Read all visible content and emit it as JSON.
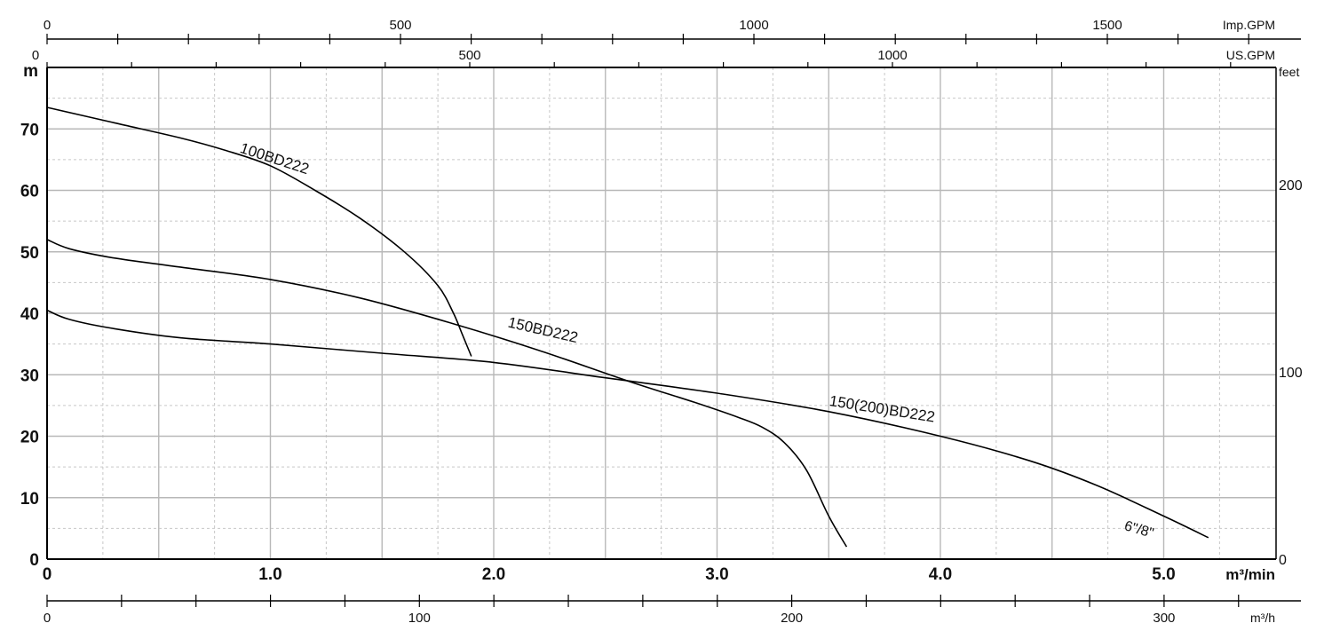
{
  "chart_data": {
    "type": "line",
    "title": "",
    "xlabel": "m³/min",
    "ylabel": "m",
    "xlim": [
      0,
      5.5
    ],
    "ylim": [
      0,
      80
    ],
    "grid": true,
    "x_ticks": [
      "0",
      "1.0",
      "2.0",
      "3.0",
      "4.0",
      "5.0"
    ],
    "y_ticks": [
      "0",
      "10",
      "20",
      "30",
      "40",
      "50",
      "60",
      "70"
    ],
    "y_axis_unit": "m",
    "secondary_axes": {
      "imp_gpm": {
        "label": "Imp.GPM",
        "ticks": [
          "0",
          "500",
          "1000",
          "1500"
        ]
      },
      "us_gpm": {
        "label": "US.GPM",
        "ticks": [
          "0",
          "500",
          "1000"
        ]
      },
      "feet": {
        "label": "feet",
        "ticks": [
          "0",
          "100",
          "200"
        ]
      },
      "m3h": {
        "label": "m³/h",
        "ticks": [
          "0",
          "100",
          "200",
          "300"
        ]
      }
    },
    "series": [
      {
        "name": "100BD222",
        "x": [
          0,
          0.3,
          0.6,
          0.8,
          1.0,
          1.2,
          1.4,
          1.6,
          1.75,
          1.82,
          1.86,
          1.9
        ],
        "y": [
          73.5,
          71.0,
          68.5,
          66.5,
          64.0,
          60.0,
          55.5,
          50.0,
          44.5,
          40.0,
          36.5,
          33.0
        ]
      },
      {
        "name": "150BD222",
        "x": [
          0,
          0.1,
          0.3,
          0.6,
          1.0,
          1.4,
          1.8,
          2.2,
          2.6,
          2.9,
          3.1,
          3.2,
          3.3,
          3.4,
          3.5,
          3.58
        ],
        "y": [
          52.0,
          50.5,
          49.0,
          47.5,
          45.5,
          42.5,
          38.5,
          34.0,
          29.0,
          25.5,
          23.0,
          21.5,
          19.0,
          14.5,
          7.0,
          2.0
        ]
      },
      {
        "name": "150(200)BD222",
        "label2": "6\"/8\"",
        "x": [
          0,
          0.1,
          0.3,
          0.6,
          1.0,
          1.5,
          2.0,
          2.5,
          3.0,
          3.5,
          4.0,
          4.4,
          4.7,
          5.0,
          5.2
        ],
        "y": [
          40.5,
          39.0,
          37.5,
          36.0,
          35.0,
          33.5,
          32.0,
          29.5,
          27.0,
          24.0,
          20.0,
          16.0,
          12.0,
          7.0,
          3.5
        ]
      }
    ]
  }
}
